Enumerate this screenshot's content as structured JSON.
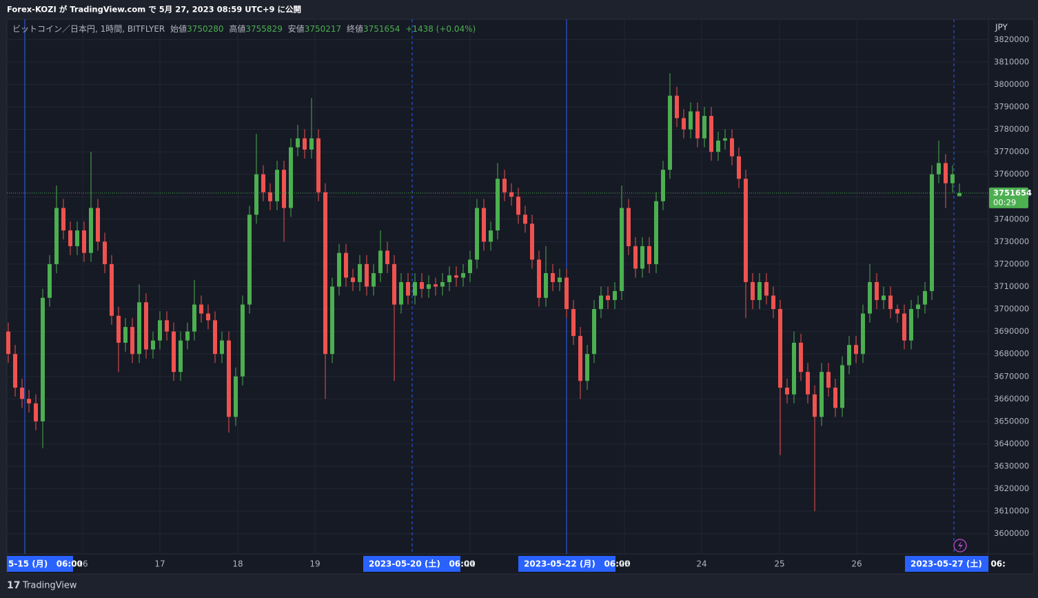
{
  "header": {
    "published": "Forex-KOZI が TradingView.com で 5月 27, 2023 08:59 UTC+9 に公開"
  },
  "footer": {
    "brand": "TradingView"
  },
  "chart_data": {
    "type": "candlestick",
    "symbol": "ビットコイン／日本円, 1時間, BITFLYER",
    "open_label": "始値",
    "high_label": "高値",
    "low_label": "安値",
    "close_label": "終値",
    "change_label": "+1438 (+0.04%)",
    "currency": "JPY",
    "countdown": "00:29",
    "up_color": "#4caf50",
    "down_color": "#ef5350",
    "grid": true,
    "ylim": [
      3591000,
      3829000
    ],
    "yticks": [
      3600000,
      3610000,
      3620000,
      3630000,
      3640000,
      3650000,
      3660000,
      3670000,
      3680000,
      3690000,
      3700000,
      3710000,
      3720000,
      3730000,
      3740000,
      3750000,
      3760000,
      3770000,
      3780000,
      3790000,
      3800000,
      3810000,
      3820000
    ],
    "x_labels": [
      "5-15 (月)   06:00",
      "16",
      "17",
      "18",
      "19",
      "2023-05-20 (土)   06:00",
      "21",
      "2023-05-22 (月)   06:00",
      "23",
      "24",
      "25",
      "26",
      "2023-05-27 (土)   06:"
    ],
    "open": [
      3690000,
      3680000,
      3665000,
      3660000,
      3658000,
      3650000,
      3705000,
      3720000,
      3745000,
      3735000,
      3728000,
      3735000,
      3725000,
      3745000,
      3730000,
      3720000,
      3697000,
      3685000,
      3692000,
      3680000,
      3703000,
      3682000,
      3686000,
      3695000,
      3690000,
      3672000,
      3686000,
      3690000,
      3702000,
      3698000,
      3695000,
      3680000,
      3686000,
      3652000,
      3670000,
      3702000,
      3742000,
      3760000,
      3752000,
      3748000,
      3762000,
      3745000,
      3772000,
      3776000,
      3771000,
      3776000,
      3752000,
      3680000,
      3710000,
      3725000,
      3714000,
      3712000,
      3720000,
      3710000,
      3716000,
      3726000,
      3720000,
      3702000,
      3712000,
      3706000,
      3712000,
      3709000,
      3711000,
      3710000,
      3712000,
      3715000,
      3714000,
      3716000,
      3722000,
      3745000,
      3730000,
      3735000,
      3758000,
      3752000,
      3750000,
      3742000,
      3738000,
      3722000,
      3705000,
      3716000,
      3712000,
      3714000,
      3700000,
      3688000,
      3668000,
      3680000,
      3700000,
      3706000,
      3704000,
      3708000,
      3745000,
      3728000,
      3718000,
      3728000,
      3720000,
      3748000,
      3762000,
      3795000,
      3785000,
      3780000,
      3788000,
      3776000,
      3786000,
      3770000,
      3775000,
      3776000,
      3768000,
      3758000,
      3712000,
      3704000,
      3712000,
      3706000,
      3700000,
      3665000,
      3662000,
      3685000,
      3672000,
      3662000,
      3652000,
      3672000,
      3665000,
      3656000,
      3675000,
      3684000,
      3680000,
      3698000,
      3712000,
      3704000,
      3706000,
      3700000,
      3698000,
      3686000,
      3700000,
      3702000,
      3708000,
      3760000,
      3765000,
      3756000,
      3750280
    ],
    "high": [
      3694000,
      3684000,
      3669000,
      3664000,
      3662000,
      3709000,
      3724000,
      3755000,
      3749000,
      3739000,
      3739000,
      3739000,
      3770000,
      3749000,
      3734000,
      3724000,
      3701000,
      3696000,
      3696000,
      3711000,
      3707000,
      3690000,
      3699000,
      3699000,
      3694000,
      3690000,
      3694000,
      3713000,
      3706000,
      3702000,
      3699000,
      3690000,
      3690000,
      3674000,
      3706000,
      3746000,
      3778000,
      3764000,
      3756000,
      3766000,
      3766000,
      3776000,
      3782000,
      3780000,
      3794000,
      3780000,
      3756000,
      3714000,
      3729000,
      3729000,
      3718000,
      3724000,
      3724000,
      3720000,
      3735000,
      3730000,
      3724000,
      3716000,
      3716000,
      3716000,
      3716000,
      3715000,
      3714000,
      3716000,
      3719000,
      3719000,
      3720000,
      3726000,
      3749000,
      3749000,
      3739000,
      3765000,
      3762000,
      3756000,
      3754000,
      3746000,
      3742000,
      3726000,
      3728000,
      3720000,
      3718000,
      3718000,
      3704000,
      3692000,
      3684000,
      3704000,
      3710000,
      3710000,
      3712000,
      3755000,
      3749000,
      3732000,
      3732000,
      3732000,
      3752000,
      3766000,
      3805000,
      3799000,
      3789000,
      3792000,
      3792000,
      3790000,
      3790000,
      3779000,
      3780000,
      3780000,
      3772000,
      3762000,
      3716000,
      3716000,
      3716000,
      3710000,
      3704000,
      3669000,
      3690000,
      3689000,
      3676000,
      3666000,
      3676000,
      3676000,
      3669000,
      3679000,
      3688000,
      3688000,
      3702000,
      3720000,
      3716000,
      3710000,
      3710000,
      3702000,
      3702000,
      3704000,
      3706000,
      3712000,
      3764000,
      3775000,
      3769000,
      3764000,
      3755829
    ],
    "low": [
      3676000,
      3661000,
      3656000,
      3654000,
      3646000,
      3638000,
      3701000,
      3716000,
      3731000,
      3724000,
      3724000,
      3721000,
      3721000,
      3726000,
      3716000,
      3693000,
      3672000,
      3681000,
      3676000,
      3676000,
      3678000,
      3678000,
      3682000,
      3686000,
      3668000,
      3668000,
      3682000,
      3686000,
      3694000,
      3691000,
      3676000,
      3676000,
      3645000,
      3648000,
      3666000,
      3698000,
      3738000,
      3748000,
      3744000,
      3744000,
      3730000,
      3741000,
      3768000,
      3767000,
      3767000,
      3748000,
      3660000,
      3676000,
      3706000,
      3710000,
      3708000,
      3708000,
      3706000,
      3706000,
      3712000,
      3716000,
      3668000,
      3698000,
      3702000,
      3702000,
      3705000,
      3705000,
      3706000,
      3706000,
      3708000,
      3710000,
      3710000,
      3712000,
      3718000,
      3726000,
      3726000,
      3731000,
      3748000,
      3746000,
      3738000,
      3734000,
      3718000,
      3701000,
      3701000,
      3708000,
      3708000,
      3696000,
      3684000,
      3660000,
      3664000,
      3676000,
      3696000,
      3700000,
      3700000,
      3704000,
      3724000,
      3714000,
      3714000,
      3716000,
      3716000,
      3744000,
      3758000,
      3781000,
      3776000,
      3776000,
      3772000,
      3772000,
      3766000,
      3766000,
      3771000,
      3764000,
      3754000,
      3696000,
      3700000,
      3700000,
      3702000,
      3696000,
      3635000,
      3658000,
      3658000,
      3668000,
      3658000,
      3610000,
      3648000,
      3661000,
      3652000,
      3652000,
      3671000,
      3676000,
      3676000,
      3694000,
      3700000,
      3700000,
      3696000,
      3694000,
      3682000,
      3682000,
      3696000,
      3698000,
      3704000,
      3756000,
      3745000,
      3752000,
      3750217
    ],
    "close": [
      3680000,
      3665000,
      3660000,
      3658000,
      3650000,
      3705000,
      3720000,
      3745000,
      3735000,
      3728000,
      3735000,
      3725000,
      3745000,
      3730000,
      3720000,
      3697000,
      3685000,
      3692000,
      3680000,
      3703000,
      3682000,
      3686000,
      3695000,
      3690000,
      3672000,
      3686000,
      3690000,
      3702000,
      3698000,
      3695000,
      3680000,
      3686000,
      3652000,
      3670000,
      3702000,
      3742000,
      3760000,
      3752000,
      3748000,
      3762000,
      3745000,
      3772000,
      3776000,
      3771000,
      3776000,
      3752000,
      3680000,
      3710000,
      3725000,
      3714000,
      3712000,
      3720000,
      3710000,
      3716000,
      3726000,
      3720000,
      3702000,
      3712000,
      3706000,
      3712000,
      3709000,
      3711000,
      3710000,
      3712000,
      3715000,
      3714000,
      3716000,
      3722000,
      3745000,
      3730000,
      3735000,
      3758000,
      3752000,
      3750000,
      3742000,
      3738000,
      3722000,
      3705000,
      3716000,
      3712000,
      3714000,
      3700000,
      3688000,
      3668000,
      3680000,
      3700000,
      3706000,
      3704000,
      3708000,
      3745000,
      3728000,
      3718000,
      3728000,
      3720000,
      3748000,
      3762000,
      3795000,
      3785000,
      3780000,
      3788000,
      3776000,
      3786000,
      3770000,
      3775000,
      3776000,
      3768000,
      3758000,
      3712000,
      3704000,
      3712000,
      3706000,
      3700000,
      3665000,
      3662000,
      3685000,
      3672000,
      3662000,
      3652000,
      3672000,
      3665000,
      3656000,
      3675000,
      3684000,
      3680000,
      3698000,
      3712000,
      3704000,
      3706000,
      3700000,
      3698000,
      3686000,
      3700000,
      3702000,
      3708000,
      3760000,
      3765000,
      3756000,
      3760000,
      3751654
    ]
  }
}
